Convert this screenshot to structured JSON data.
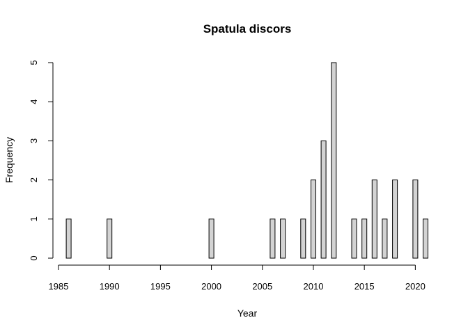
{
  "chart_data": {
    "type": "bar",
    "title": "Spatula discors",
    "xlabel": "Year",
    "ylabel": "Frequency",
    "bar_fill": "#d3d3d3",
    "bar_stroke": "#000000",
    "x_range": [
      1985,
      2021
    ],
    "y_range": [
      0,
      5
    ],
    "x_ticks": [
      1985,
      1990,
      1995,
      2000,
      2005,
      2010,
      2015,
      2020
    ],
    "y_ticks": [
      0,
      1,
      2,
      3,
      4,
      5
    ],
    "grid": false,
    "x": [
      1986,
      1987,
      1988,
      1989,
      1990,
      1991,
      1992,
      1993,
      1994,
      1995,
      1996,
      1997,
      1998,
      1999,
      2000,
      2001,
      2002,
      2003,
      2004,
      2005,
      2006,
      2007,
      2008,
      2009,
      2010,
      2011,
      2012,
      2013,
      2014,
      2015,
      2016,
      2017,
      2018,
      2019,
      2020,
      2021
    ],
    "values": [
      1,
      0,
      0,
      0,
      1,
      0,
      0,
      0,
      0,
      0,
      0,
      0,
      0,
      0,
      1,
      0,
      0,
      0,
      0,
      0,
      1,
      1,
      0,
      1,
      2,
      3,
      5,
      0,
      1,
      1,
      2,
      1,
      2,
      0,
      2,
      1
    ]
  }
}
